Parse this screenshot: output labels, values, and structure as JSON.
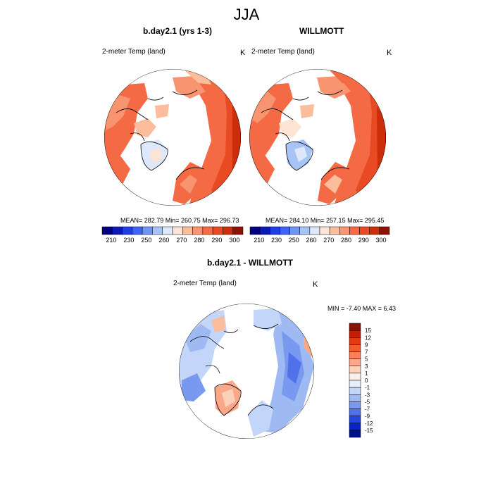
{
  "main_title": "JJA",
  "panels": [
    {
      "title": "b.day2.1 (yrs 1-3)",
      "variable": "2-meter Temp (land)",
      "units": "K",
      "stats": "MEAN= 282.79  Min= 260.75  Max= 296.73"
    },
    {
      "title": "WILLMOTT",
      "variable": "2-meter Temp (land)",
      "units": "K",
      "stats": "MEAN= 284.10  Min= 257.15  Max= 295.45"
    },
    {
      "title": "b.day2.1 - WILLMOTT",
      "variable": "2-meter Temp (land)",
      "units": "K",
      "stats": "MIN =  -7.40 MAX =   6.43"
    }
  ],
  "colorbar_abs": {
    "tick_labels": [
      "210",
      "230",
      "250",
      "260",
      "270",
      "280",
      "290",
      "300"
    ],
    "colors": [
      "#00007e",
      "#0a1bb5",
      "#1f3ee6",
      "#3c66f2",
      "#6f95f7",
      "#a8c4f7",
      "#dde9fb",
      "#fde4d4",
      "#fbbd9c",
      "#f99470",
      "#f46a45",
      "#e84a23",
      "#cc2e0c",
      "#8c1202"
    ]
  },
  "colorbar_diff": {
    "tick_labels": [
      "15",
      "12",
      "9",
      "7",
      "5",
      "3",
      "1",
      "0",
      "-1",
      "-3",
      "-5",
      "-7",
      "-9",
      "-12",
      "-15"
    ],
    "colors": [
      "#8c1202",
      "#c41e07",
      "#e23a13",
      "#f25a30",
      "#f8805a",
      "#fba888",
      "#fdd0ba",
      "#fdf0ea",
      "#e6eefc",
      "#c3d5f8",
      "#9fbaf3",
      "#7899ef",
      "#4f71ea",
      "#2346e2",
      "#0b22c4",
      "#00108a"
    ]
  }
}
